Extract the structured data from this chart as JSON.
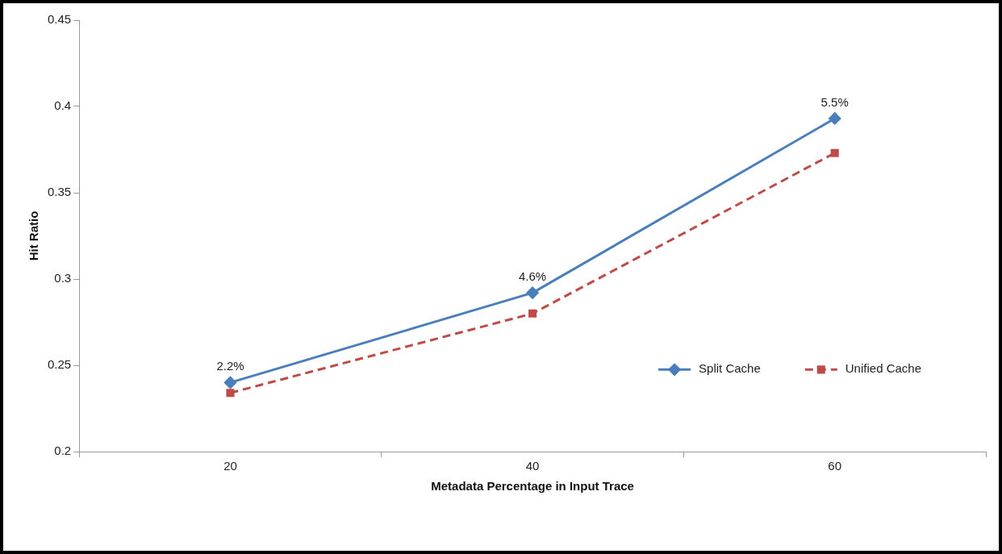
{
  "chart_data": {
    "type": "line",
    "xlabel": "Metadata Percentage in Input Trace",
    "ylabel": "Hit Ratio",
    "categories": [
      "20",
      "40",
      "60"
    ],
    "series": [
      {
        "name": "Split Cache",
        "color": "#4a7ebb",
        "values": [
          0.24,
          0.292,
          0.393
        ],
        "marker": "diamond",
        "line_style": "solid"
      },
      {
        "name": "Unified Cache",
        "color": "#be4b48",
        "values": [
          0.234,
          0.28,
          0.373
        ],
        "marker": "square",
        "line_style": "dashed"
      }
    ],
    "ylim": [
      0.2,
      0.45
    ],
    "yticks": [
      0.2,
      0.25,
      0.3,
      0.35,
      0.4,
      0.45
    ],
    "grid": false,
    "legend": "bottom right",
    "annotations": [
      {
        "text": "2.2%",
        "x": "20",
        "y": 0.24
      },
      {
        "text": "4.6%",
        "x": "40",
        "y": 0.292
      },
      {
        "text": "5.5%",
        "x": "60",
        "y": 0.393
      }
    ]
  }
}
